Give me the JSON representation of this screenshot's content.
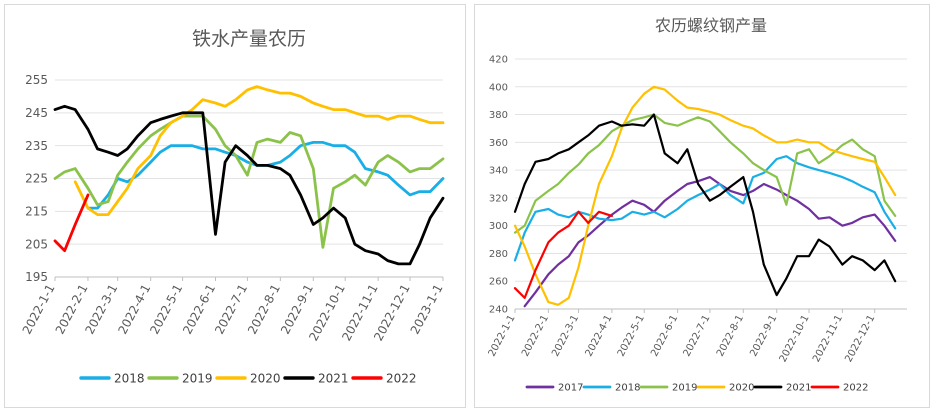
{
  "chart_data": [
    {
      "type": "line",
      "title": "铁水产量农历",
      "xlabel": "",
      "ylabel": "",
      "ylim": [
        195,
        255
      ],
      "yticks": [
        195,
        205,
        215,
        225,
        235,
        245,
        255
      ],
      "xlim": [
        "2022-01-01",
        "2023-01-01"
      ],
      "xticks": [
        "2022-1-1",
        "2022-2-1",
        "2022-3-1",
        "2022-4-1",
        "2022-5-1",
        "2022-6-1",
        "2022-7-1",
        "2022-8-1",
        "2022-9-1",
        "2022-10-1",
        "2022-11-1",
        "2022-12-1",
        "2023-1-1"
      ],
      "grid": "horizontal",
      "legend_position": "bottom",
      "series": [
        {
          "name": "2018",
          "color": "#1aaee6",
          "x": [
            "2022-02-01",
            "2022-02-10",
            "2022-02-20",
            "2022-03-01",
            "2022-03-10",
            "2022-03-20",
            "2022-04-01",
            "2022-04-10",
            "2022-04-20",
            "2022-05-01",
            "2022-05-10",
            "2022-05-20",
            "2022-06-01",
            "2022-06-10",
            "2022-06-20",
            "2022-07-01",
            "2022-07-10",
            "2022-07-20",
            "2022-08-01",
            "2022-08-10",
            "2022-08-20",
            "2022-09-01",
            "2022-09-10",
            "2022-09-20",
            "2022-10-01",
            "2022-10-10",
            "2022-10-20",
            "2022-11-01",
            "2022-11-10",
            "2022-11-20",
            "2022-12-01",
            "2022-12-10",
            "2022-12-20",
            "2023-01-01"
          ],
          "y": [
            216,
            216,
            220,
            225,
            224,
            226,
            230,
            233,
            235,
            235,
            235,
            234,
            234,
            233,
            232,
            230,
            229,
            229,
            230,
            232,
            235,
            236,
            236,
            235,
            235,
            233,
            228,
            227,
            226,
            223,
            220,
            221,
            221,
            225
          ]
        },
        {
          "name": "2019",
          "color": "#8bc34a",
          "x": [
            "2022-01-01",
            "2022-01-10",
            "2022-01-20",
            "2022-02-01",
            "2022-02-10",
            "2022-02-20",
            "2022-03-01",
            "2022-03-10",
            "2022-03-20",
            "2022-04-01",
            "2022-04-10",
            "2022-04-20",
            "2022-05-01",
            "2022-05-10",
            "2022-05-20",
            "2022-06-01",
            "2022-06-10",
            "2022-06-20",
            "2022-07-01",
            "2022-07-10",
            "2022-07-20",
            "2022-08-01",
            "2022-08-10",
            "2022-08-20",
            "2022-09-01",
            "2022-09-10",
            "2022-09-20",
            "2022-10-01",
            "2022-10-10",
            "2022-10-20",
            "2022-11-01",
            "2022-11-10",
            "2022-11-20",
            "2022-12-01",
            "2022-12-10",
            "2022-12-20",
            "2023-01-01"
          ],
          "y": [
            225,
            227,
            228,
            222,
            217,
            218,
            226,
            230,
            234,
            238,
            240,
            242,
            244,
            244,
            244,
            240,
            235,
            232,
            226,
            236,
            237,
            236,
            239,
            238,
            228,
            204,
            222,
            224,
            226,
            223,
            230,
            232,
            230,
            227,
            228,
            228,
            231
          ]
        },
        {
          "name": "2020",
          "color": "#ffc000",
          "x": [
            "2022-01-20",
            "2022-02-01",
            "2022-02-10",
            "2022-02-20",
            "2022-03-01",
            "2022-03-10",
            "2022-03-20",
            "2022-04-01",
            "2022-04-10",
            "2022-04-20",
            "2022-05-01",
            "2022-05-10",
            "2022-05-20",
            "2022-06-01",
            "2022-06-10",
            "2022-06-20",
            "2022-07-01",
            "2022-07-10",
            "2022-07-20",
            "2022-08-01",
            "2022-08-10",
            "2022-08-20",
            "2022-09-01",
            "2022-09-10",
            "2022-09-20",
            "2022-10-01",
            "2022-10-10",
            "2022-10-20",
            "2022-11-01",
            "2022-11-10",
            "2022-11-20",
            "2022-12-01",
            "2022-12-10",
            "2022-12-20",
            "2023-01-01"
          ],
          "y": [
            224,
            216,
            214,
            214,
            218,
            222,
            228,
            232,
            238,
            242,
            244,
            246,
            249,
            248,
            247,
            249,
            252,
            253,
            252,
            251,
            251,
            250,
            248,
            247,
            246,
            246,
            245,
            244,
            244,
            243,
            244,
            244,
            243,
            242,
            242
          ]
        },
        {
          "name": "2021",
          "color": "#000000",
          "x": [
            "2022-01-01",
            "2022-01-10",
            "2022-01-20",
            "2022-02-01",
            "2022-02-10",
            "2022-02-20",
            "2022-03-01",
            "2022-03-10",
            "2022-03-20",
            "2022-04-01",
            "2022-04-10",
            "2022-04-20",
            "2022-05-01",
            "2022-05-10",
            "2022-05-20",
            "2022-06-01",
            "2022-06-10",
            "2022-06-20",
            "2022-07-01",
            "2022-07-10",
            "2022-07-20",
            "2022-08-01",
            "2022-08-10",
            "2022-08-20",
            "2022-09-01",
            "2022-09-10",
            "2022-09-20",
            "2022-10-01",
            "2022-10-10",
            "2022-10-20",
            "2022-11-01",
            "2022-11-10",
            "2022-11-20",
            "2022-12-01",
            "2022-12-10",
            "2022-12-20",
            "2023-01-01"
          ],
          "y": [
            246,
            247,
            246,
            240,
            234,
            233,
            232,
            234,
            238,
            242,
            243,
            244,
            245,
            245,
            245,
            208,
            230,
            235,
            232,
            229,
            229,
            228,
            226,
            220,
            211,
            213,
            216,
            213,
            205,
            203,
            202,
            200,
            199,
            199,
            205,
            213,
            219
          ]
        },
        {
          "name": "2022",
          "color": "#ff0000",
          "x": [
            "2022-01-01",
            "2022-01-10",
            "2022-01-20",
            "2022-02-01"
          ],
          "y": [
            206,
            203,
            211,
            220
          ]
        }
      ]
    },
    {
      "type": "line",
      "title": "农历螺纹钢产量",
      "xlabel": "",
      "ylabel": "",
      "ylim": [
        240,
        420
      ],
      "yticks": [
        240,
        260,
        280,
        300,
        320,
        340,
        360,
        380,
        400,
        420
      ],
      "xlim": [
        "2022-01-01",
        "2022-12-31"
      ],
      "xticks": [
        "2022-1-1",
        "2022-2-1",
        "2022-3-1",
        "2022-4-1",
        "2022-5-1",
        "2022-6-1",
        "2022-7-1",
        "2022-8-1",
        "2022-9-1",
        "2022-10-1",
        "2022-11-1",
        "2022-12-1"
      ],
      "grid": "horizontal",
      "legend_position": "bottom",
      "series": [
        {
          "name": "2017",
          "color": "#7030a0",
          "x": [
            "2022-01-10",
            "2022-01-20",
            "2022-02-01",
            "2022-02-10",
            "2022-02-20",
            "2022-03-01",
            "2022-03-10",
            "2022-03-20",
            "2022-04-01",
            "2022-04-10",
            "2022-04-20",
            "2022-05-01",
            "2022-05-10",
            "2022-05-20",
            "2022-06-01",
            "2022-06-10",
            "2022-06-20",
            "2022-07-01",
            "2022-07-10",
            "2022-07-20",
            "2022-08-01",
            "2022-08-10",
            "2022-08-20",
            "2022-09-01",
            "2022-09-10",
            "2022-09-20",
            "2022-10-01",
            "2022-10-10",
            "2022-10-20",
            "2022-11-01",
            "2022-11-10",
            "2022-11-20",
            "2022-12-01",
            "2022-12-10",
            "2022-12-20"
          ],
          "y": [
            242,
            252,
            265,
            272,
            278,
            288,
            293,
            300,
            308,
            313,
            318,
            315,
            310,
            318,
            325,
            330,
            332,
            335,
            330,
            325,
            322,
            325,
            330,
            326,
            322,
            318,
            312,
            305,
            306,
            300,
            302,
            306,
            308,
            300,
            289
          ]
        },
        {
          "name": "2018",
          "color": "#1aaee6",
          "x": [
            "2022-01-01",
            "2022-01-10",
            "2022-01-20",
            "2022-02-01",
            "2022-02-10",
            "2022-02-20",
            "2022-03-01",
            "2022-03-10",
            "2022-03-20",
            "2022-04-01",
            "2022-04-10",
            "2022-04-20",
            "2022-05-01",
            "2022-05-10",
            "2022-05-20",
            "2022-06-01",
            "2022-06-10",
            "2022-06-20",
            "2022-07-01",
            "2022-07-10",
            "2022-07-20",
            "2022-08-01",
            "2022-08-10",
            "2022-08-20",
            "2022-09-01",
            "2022-09-10",
            "2022-09-20",
            "2022-10-01",
            "2022-10-10",
            "2022-10-20",
            "2022-11-01",
            "2022-11-10",
            "2022-11-20",
            "2022-12-01",
            "2022-12-10",
            "2022-12-20"
          ],
          "y": [
            275,
            295,
            310,
            312,
            308,
            306,
            310,
            308,
            305,
            304,
            305,
            310,
            308,
            310,
            306,
            312,
            318,
            322,
            326,
            330,
            322,
            316,
            335,
            338,
            348,
            350,
            345,
            342,
            340,
            338,
            335,
            332,
            328,
            324,
            310,
            298
          ]
        },
        {
          "name": "2019",
          "color": "#8bc34a",
          "x": [
            "2022-01-01",
            "2022-01-10",
            "2022-01-20",
            "2022-02-01",
            "2022-02-10",
            "2022-02-20",
            "2022-03-01",
            "2022-03-10",
            "2022-03-20",
            "2022-04-01",
            "2022-04-10",
            "2022-04-20",
            "2022-05-01",
            "2022-05-10",
            "2022-05-20",
            "2022-06-01",
            "2022-06-10",
            "2022-06-20",
            "2022-07-01",
            "2022-07-10",
            "2022-07-20",
            "2022-08-01",
            "2022-08-10",
            "2022-08-20",
            "2022-09-01",
            "2022-09-10",
            "2022-09-20",
            "2022-10-01",
            "2022-10-10",
            "2022-10-20",
            "2022-11-01",
            "2022-11-10",
            "2022-11-20",
            "2022-12-01",
            "2022-12-10",
            "2022-12-20"
          ],
          "y": [
            295,
            300,
            318,
            325,
            330,
            338,
            344,
            352,
            358,
            368,
            372,
            376,
            378,
            380,
            374,
            372,
            375,
            378,
            375,
            368,
            360,
            352,
            345,
            340,
            335,
            315,
            352,
            355,
            345,
            350,
            358,
            362,
            355,
            350,
            318,
            307
          ]
        },
        {
          "name": "2020",
          "color": "#ffc000",
          "x": [
            "2022-01-01",
            "2022-01-10",
            "2022-01-20",
            "2022-02-01",
            "2022-02-10",
            "2022-02-20",
            "2022-03-01",
            "2022-03-10",
            "2022-03-20",
            "2022-04-01",
            "2022-04-10",
            "2022-04-20",
            "2022-05-01",
            "2022-05-10",
            "2022-05-20",
            "2022-06-01",
            "2022-06-10",
            "2022-06-20",
            "2022-07-01",
            "2022-07-10",
            "2022-07-20",
            "2022-08-01",
            "2022-08-10",
            "2022-08-20",
            "2022-09-01",
            "2022-09-10",
            "2022-09-20",
            "2022-10-01",
            "2022-10-10",
            "2022-10-20",
            "2022-11-01",
            "2022-11-10",
            "2022-11-20",
            "2022-12-01",
            "2022-12-10",
            "2022-12-20"
          ],
          "y": [
            300,
            285,
            265,
            245,
            243,
            248,
            270,
            300,
            330,
            350,
            370,
            385,
            395,
            400,
            398,
            390,
            385,
            384,
            382,
            380,
            376,
            372,
            370,
            365,
            360,
            360,
            362,
            360,
            360,
            355,
            352,
            350,
            348,
            346,
            335,
            322
          ]
        },
        {
          "name": "2021",
          "color": "#000000",
          "x": [
            "2022-01-01",
            "2022-01-10",
            "2022-01-20",
            "2022-02-01",
            "2022-02-10",
            "2022-02-20",
            "2022-03-01",
            "2022-03-10",
            "2022-03-20",
            "2022-04-01",
            "2022-04-10",
            "2022-04-20",
            "2022-05-01",
            "2022-05-10",
            "2022-05-20",
            "2022-06-01",
            "2022-06-10",
            "2022-06-20",
            "2022-07-01",
            "2022-07-10",
            "2022-07-20",
            "2022-08-01",
            "2022-08-10",
            "2022-08-20",
            "2022-09-01",
            "2022-09-10",
            "2022-09-20",
            "2022-10-01",
            "2022-10-10",
            "2022-10-20",
            "2022-11-01",
            "2022-11-10",
            "2022-11-20",
            "2022-12-01",
            "2022-12-10",
            "2022-12-20"
          ],
          "y": [
            310,
            330,
            346,
            348,
            352,
            355,
            360,
            365,
            372,
            375,
            372,
            373,
            372,
            380,
            352,
            345,
            355,
            330,
            318,
            322,
            328,
            335,
            310,
            272,
            250,
            262,
            278,
            278,
            290,
            285,
            272,
            278,
            275,
            268,
            275,
            260
          ]
        },
        {
          "name": "2022",
          "color": "#ff0000",
          "x": [
            "2022-01-01",
            "2022-01-10",
            "2022-01-20",
            "2022-02-01",
            "2022-02-10",
            "2022-02-20",
            "2022-03-01",
            "2022-03-10",
            "2022-03-20",
            "2022-04-01"
          ],
          "y": [
            255,
            248,
            268,
            288,
            295,
            300,
            310,
            302,
            310,
            307
          ]
        }
      ]
    }
  ]
}
